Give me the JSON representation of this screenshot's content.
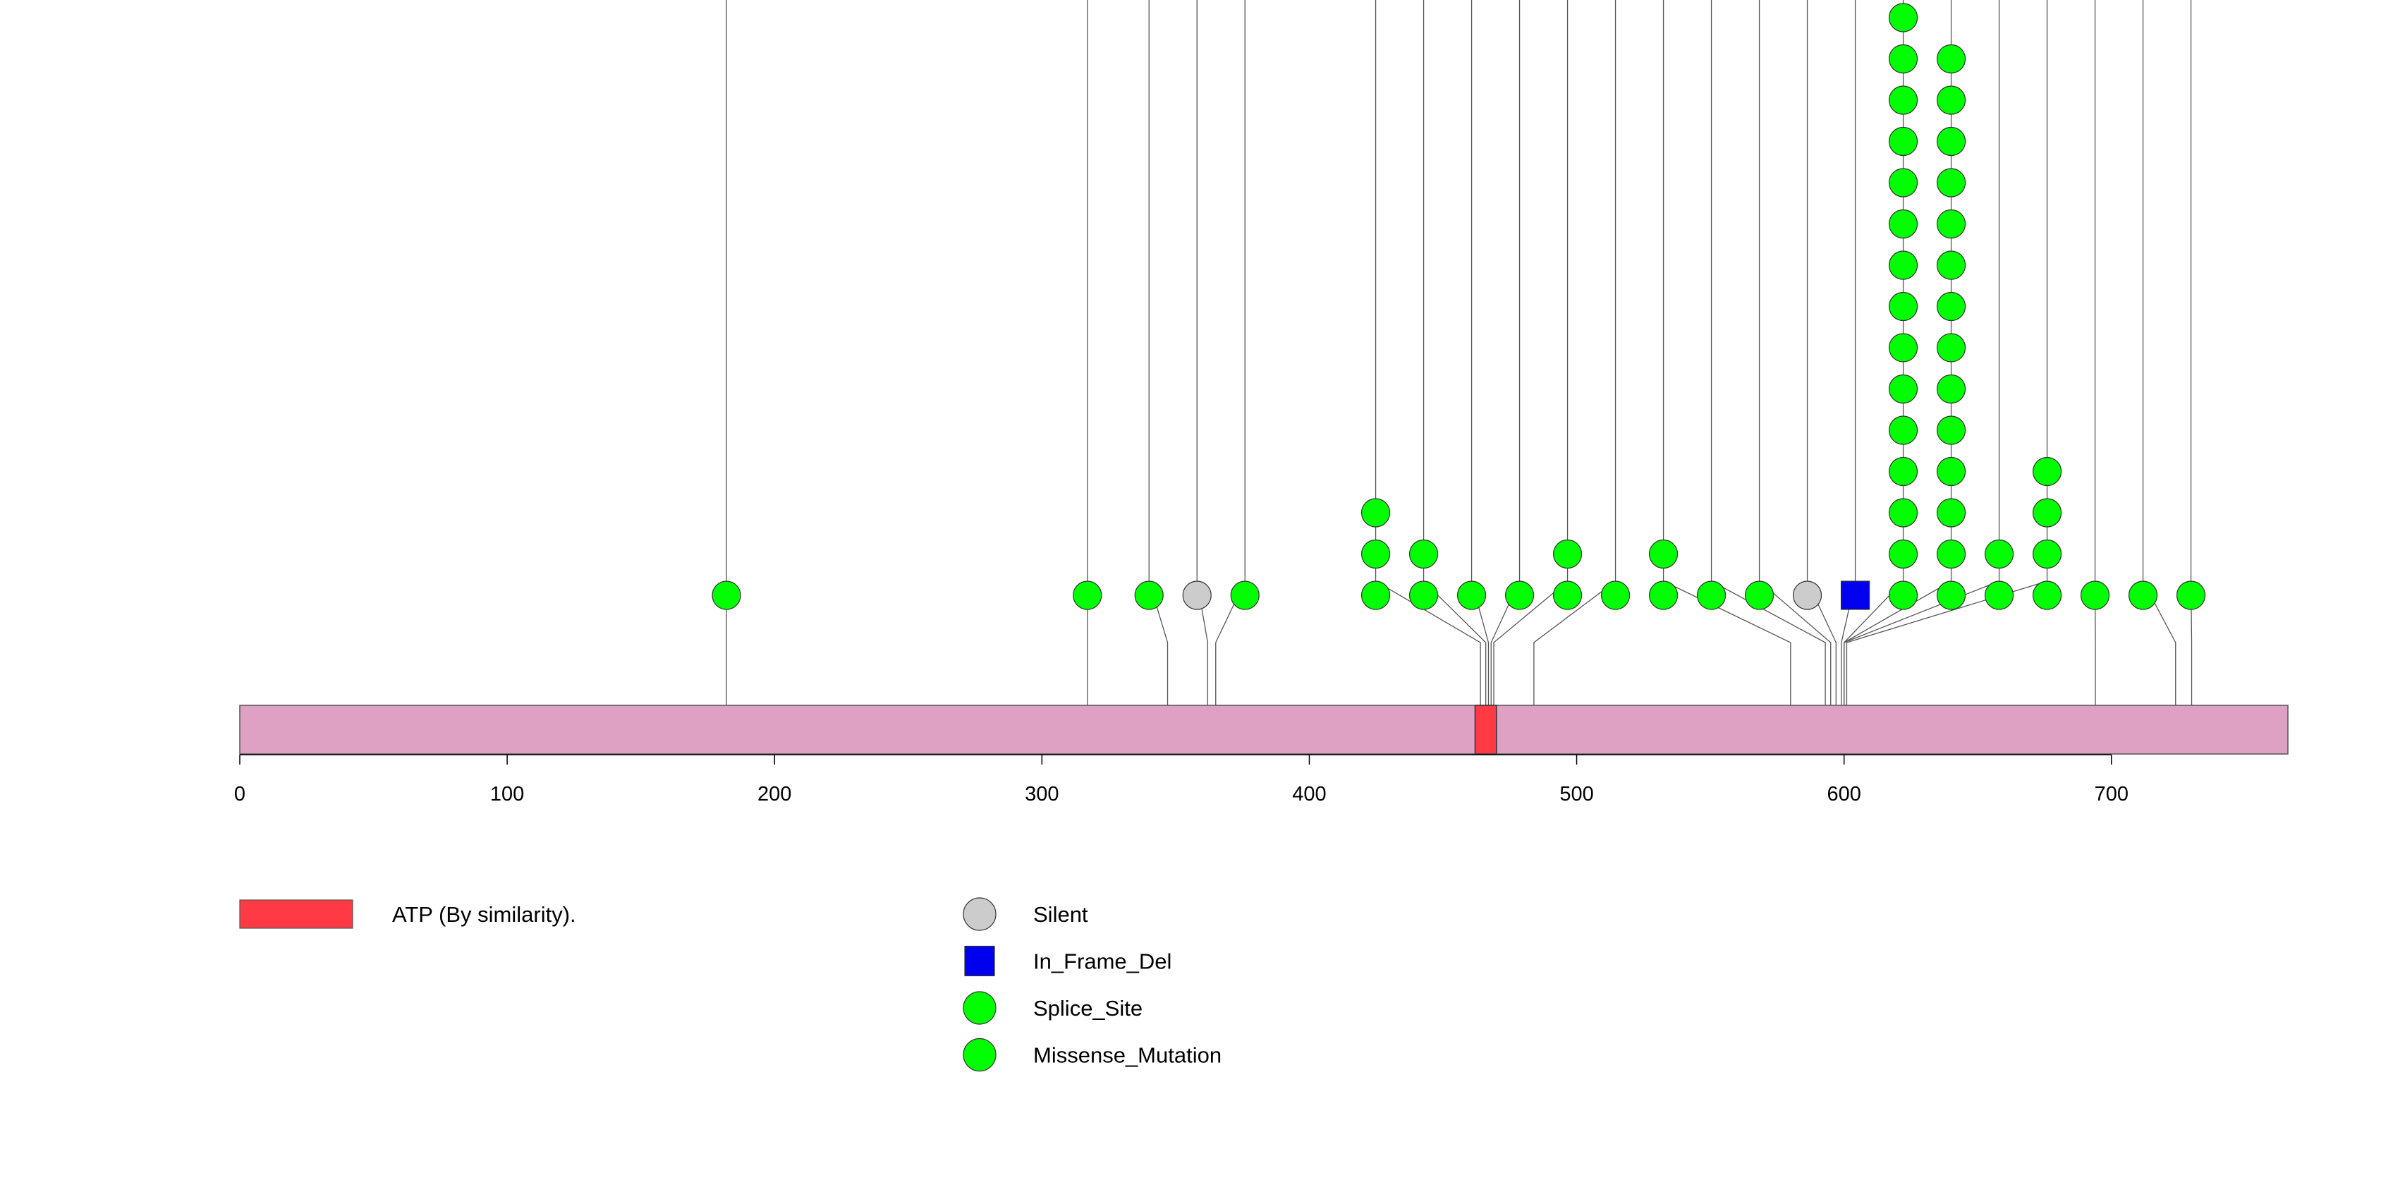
{
  "chart_data": {
    "type": "lollipop",
    "protein_length": 766,
    "x_ticks": [
      0,
      100,
      200,
      300,
      400,
      500,
      600,
      700
    ],
    "colors": {
      "protein_bar": "#dea1c4",
      "domain": "#ff3a45",
      "silent": "#cccccc",
      "in_frame_del": "#0000ee",
      "splice_site": "#00ff00",
      "missense": "#00ff00"
    },
    "domains": [
      {
        "label": "ATP (By similarity).",
        "start": 462,
        "end": 470
      }
    ],
    "legend": [
      {
        "type": "silent",
        "label": "Silent",
        "shape": "circle"
      },
      {
        "type": "in_frame_del",
        "label": "In_Frame_Del",
        "shape": "square"
      },
      {
        "type": "splice_site",
        "label": "Splice_Site",
        "shape": "circle"
      },
      {
        "type": "missense",
        "label": "Missense_Mutation",
        "shape": "circle"
      }
    ],
    "mutations": [
      {
        "pos": 182,
        "type": "missense",
        "count": 1
      },
      {
        "pos": 317,
        "type": "missense",
        "count": 1
      },
      {
        "pos": 347,
        "type": "missense",
        "count": 1
      },
      {
        "pos": 362,
        "type": "silent",
        "count": 1
      },
      {
        "pos": 365,
        "type": "missense",
        "count": 1
      },
      {
        "pos": 464,
        "type": "missense",
        "count": 3
      },
      {
        "pos": 466,
        "type": "missense",
        "count": 2
      },
      {
        "pos": 467,
        "type": "missense",
        "count": 1
      },
      {
        "pos": 468,
        "type": "missense",
        "count": 1
      },
      {
        "pos": 469,
        "type": "missense",
        "count": 2
      },
      {
        "pos": 484,
        "type": "missense",
        "count": 1
      },
      {
        "pos": 580,
        "type": "missense",
        "count": 2
      },
      {
        "pos": 593,
        "type": "missense",
        "count": 1
      },
      {
        "pos": 595,
        "type": "missense",
        "count": 1
      },
      {
        "pos": 597,
        "type": "silent",
        "count": 1
      },
      {
        "pos": 599,
        "type": "in_frame_del",
        "count": 1
      },
      {
        "pos": 600,
        "type": "missense",
        "count": 15
      },
      {
        "pos": 600,
        "type": "missense",
        "count": 14
      },
      {
        "pos": 600,
        "type": "missense",
        "count": 2
      },
      {
        "pos": 601,
        "type": "missense",
        "count": 4
      },
      {
        "pos": 694,
        "type": "missense",
        "count": 1
      },
      {
        "pos": 724,
        "type": "missense",
        "count": 1
      },
      {
        "pos": 730,
        "type": "missense",
        "count": 1
      }
    ]
  }
}
